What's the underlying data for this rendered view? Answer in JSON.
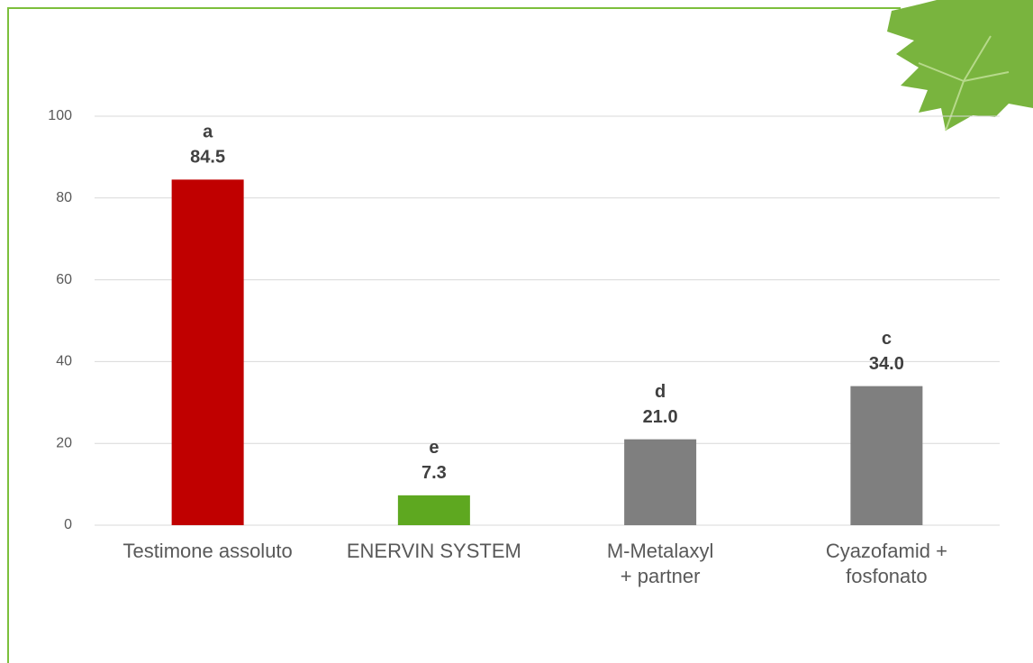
{
  "chart_data": {
    "type": "bar",
    "categories": [
      [
        "Testimone assoluto"
      ],
      [
        "ENERVIN SYSTEM"
      ],
      [
        "M-Metalaxyl",
        "+ partner"
      ],
      [
        "Cyazofamid +",
        "fosfonato"
      ]
    ],
    "values": [
      84.5,
      7.3,
      21.0,
      34.0
    ],
    "value_labels": [
      "84.5",
      "7.3",
      "21.0",
      "34.0"
    ],
    "significance_letters": [
      "a",
      "e",
      "d",
      "c"
    ],
    "colors": [
      "#c00000",
      "#5ea820",
      "#7f7f7f",
      "#7f7f7f"
    ],
    "ylim": [
      0,
      100
    ],
    "yticks": [
      0,
      20,
      40,
      60,
      80,
      100
    ],
    "grid": true
  }
}
